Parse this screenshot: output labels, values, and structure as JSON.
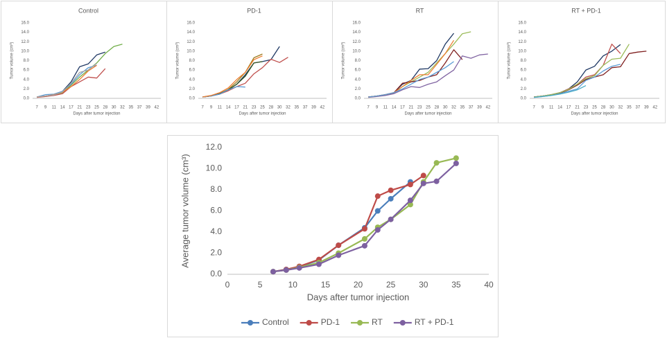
{
  "chart_data": [
    {
      "type": "line",
      "title": "Control",
      "xlabel": "Days after tumor injection",
      "ylabel": "Tumor volume (cm³)",
      "categories": [
        "7",
        "9",
        "11",
        "14",
        "17",
        "21",
        "23",
        "25",
        "28",
        "30",
        "32",
        "35",
        "37",
        "39",
        "42"
      ],
      "ylim": [
        0,
        16
      ],
      "yticks": [
        {
          "value": 0,
          "label": "0.0"
        },
        {
          "value": 2,
          "label": "2.0"
        },
        {
          "value": 4,
          "label": "4.0"
        },
        {
          "value": 6,
          "label": "6.0"
        },
        {
          "value": 8,
          "label": "8.0"
        },
        {
          "value": 10,
          "label": "10.0"
        },
        {
          "value": 12,
          "label": "12.0"
        },
        {
          "value": 14,
          "label": "14.0"
        },
        {
          "value": 16,
          "label": "16.0"
        }
      ],
      "series": [
        {
          "color": "#1f3864",
          "values": [
            0.3,
            0.5,
            0.8,
            1.5,
            3.5,
            6.7,
            7.3,
            9.2,
            9.8,
            null,
            null,
            null,
            null,
            null,
            null
          ]
        },
        {
          "color": "#70ad47",
          "values": [
            0.3,
            0.4,
            0.7,
            1.2,
            2.8,
            4.5,
            6.0,
            7.5,
            9.5,
            11.0,
            11.5,
            null,
            null,
            null,
            null
          ]
        },
        {
          "color": "#c0504d",
          "values": [
            0.2,
            0.4,
            0.6,
            1.0,
            2.5,
            3.5,
            4.5,
            4.3,
            6.3,
            null,
            null,
            null,
            null,
            null,
            null
          ]
        },
        {
          "color": "#5b9bd5",
          "values": [
            0.3,
            0.8,
            0.9,
            1.5,
            3.0,
            5.0,
            6.5,
            7.0,
            null,
            null,
            null,
            null,
            null,
            null,
            null
          ]
        },
        {
          "color": "#ed7d31",
          "values": [
            0.3,
            0.5,
            0.8,
            1.3,
            2.5,
            4.0,
            5.8,
            7.0,
            null,
            null,
            null,
            null,
            null,
            null,
            null
          ]
        },
        {
          "color": "#a5a5a5",
          "values": [
            0.3,
            0.5,
            0.7,
            1.4,
            3.2,
            5.5,
            6.0,
            7.4,
            null,
            null,
            null,
            null,
            null,
            null,
            null
          ]
        }
      ]
    },
    {
      "type": "line",
      "title": "PD-1",
      "xlabel": "Days after tumor injection",
      "ylabel": "Tumor volume (cm³)",
      "categories": [
        "7",
        "9",
        "11",
        "14",
        "17",
        "21",
        "23",
        "25",
        "28",
        "30",
        "32",
        "35",
        "37",
        "39",
        "42"
      ],
      "ylim": [
        0,
        16
      ],
      "yticks": [
        {
          "value": 0,
          "label": "0.0"
        },
        {
          "value": 2,
          "label": "2.0"
        },
        {
          "value": 4,
          "label": "4.0"
        },
        {
          "value": 6,
          "label": "6.0"
        },
        {
          "value": 8,
          "label": "8.0"
        },
        {
          "value": 10,
          "label": "10.0"
        },
        {
          "value": 12,
          "label": "12.0"
        },
        {
          "value": 14,
          "label": "14.0"
        },
        {
          "value": 16,
          "label": "16.0"
        }
      ],
      "series": [
        {
          "color": "#1f3864",
          "values": [
            0.3,
            0.5,
            0.9,
            1.8,
            3.0,
            5.0,
            7.5,
            7.8,
            8.2,
            11.0,
            null,
            null,
            null,
            null,
            null
          ]
        },
        {
          "color": "#c0504d",
          "values": [
            0.3,
            0.5,
            0.9,
            1.6,
            2.5,
            3.2,
            5.2,
            6.5,
            8.3,
            7.6,
            8.7,
            null,
            null,
            null,
            null
          ]
        },
        {
          "color": "#9c7b1c",
          "values": [
            0.3,
            0.6,
            1.0,
            1.9,
            3.5,
            5.5,
            8.6,
            9.4,
            null,
            null,
            null,
            null,
            null,
            null,
            null
          ]
        },
        {
          "color": "#375623",
          "values": [
            0.3,
            0.5,
            1.0,
            1.8,
            3.0,
            4.7,
            7.5,
            7.8,
            null,
            null,
            null,
            null,
            null,
            null,
            null
          ]
        },
        {
          "color": "#5b9bd5",
          "values": [
            0.3,
            0.5,
            0.9,
            1.8,
            2.5,
            2.4,
            null,
            null,
            null,
            null,
            null,
            null,
            null,
            null,
            null
          ]
        },
        {
          "color": "#ed7d31",
          "values": [
            0.3,
            0.6,
            1.2,
            2.2,
            4.0,
            5.5,
            8.2,
            9.0,
            null,
            null,
            null,
            null,
            null,
            null,
            null
          ]
        }
      ]
    },
    {
      "type": "line",
      "title": "RT",
      "xlabel": "Days after tumor injection",
      "ylabel": "Tumor volume (cm³)",
      "categories": [
        "7",
        "9",
        "11",
        "14",
        "17",
        "21",
        "23",
        "25",
        "28",
        "30",
        "32",
        "35",
        "37",
        "39",
        "42"
      ],
      "ylim": [
        0,
        16
      ],
      "yticks": [
        {
          "value": 0,
          "label": "0.0"
        },
        {
          "value": 2,
          "label": "2.0"
        },
        {
          "value": 4,
          "label": "4.0"
        },
        {
          "value": 6,
          "label": "6.0"
        },
        {
          "value": 8,
          "label": "8.0"
        },
        {
          "value": 10,
          "label": "10.0"
        },
        {
          "value": 12,
          "label": "12.0"
        },
        {
          "value": 14,
          "label": "14.0"
        },
        {
          "value": 16,
          "label": "16.0"
        }
      ],
      "series": [
        {
          "color": "#1f3864",
          "values": [
            0.3,
            0.5,
            0.8,
            1.2,
            3.0,
            3.8,
            6.2,
            6.3,
            8.0,
            11.5,
            13.8,
            null,
            null,
            null,
            null
          ]
        },
        {
          "color": "#9bbb59",
          "values": [
            0.3,
            0.5,
            0.7,
            1.1,
            2.5,
            3.5,
            4.5,
            5.5,
            7.5,
            9.5,
            11.5,
            13.7,
            14.1,
            null,
            null
          ]
        },
        {
          "color": "#7f1f1f",
          "values": [
            0.3,
            0.5,
            0.8,
            1.2,
            3.2,
            3.5,
            3.8,
            4.5,
            5.0,
            7.5,
            10.3,
            8.2,
            null,
            null,
            null
          ]
        },
        {
          "color": "#8064a2",
          "values": [
            0.2,
            0.4,
            0.6,
            1.0,
            1.8,
            2.5,
            2.3,
            3.0,
            3.5,
            4.8,
            6.0,
            9.0,
            8.5,
            9.2,
            9.4
          ]
        },
        {
          "color": "#ed7d31",
          "values": [
            0.3,
            0.5,
            0.8,
            1.2,
            2.5,
            3.8,
            5.0,
            5.0,
            7.2,
            9.5,
            12.3,
            null,
            null,
            null,
            null
          ]
        },
        {
          "color": "#5b9bd5",
          "values": [
            0.3,
            0.5,
            0.8,
            1.2,
            2.0,
            3.0,
            4.0,
            4.5,
            5.5,
            6.5,
            7.8,
            null,
            null,
            null,
            null
          ]
        }
      ]
    },
    {
      "type": "line",
      "title": "RT + PD-1",
      "xlabel": "Days after tumor injection",
      "ylabel": "Tumor volume (cm³)",
      "categories": [
        "7",
        "9",
        "11",
        "14",
        "17",
        "21",
        "23",
        "25",
        "28",
        "30",
        "32",
        "35",
        "37",
        "39",
        "42"
      ],
      "ylim": [
        0,
        16
      ],
      "yticks": [
        {
          "value": 0,
          "label": "0.0"
        },
        {
          "value": 2,
          "label": "2.0"
        },
        {
          "value": 4,
          "label": "4.0"
        },
        {
          "value": 6,
          "label": "6.0"
        },
        {
          "value": 8,
          "label": "8.0"
        },
        {
          "value": 10,
          "label": "10.0"
        },
        {
          "value": 12,
          "label": "12.0"
        },
        {
          "value": 14,
          "label": "14.0"
        },
        {
          "value": 16,
          "label": "16.0"
        }
      ],
      "series": [
        {
          "color": "#1f3864",
          "values": [
            0.3,
            0.5,
            0.8,
            1.2,
            2.0,
            3.5,
            6.0,
            6.8,
            9.0,
            10.0,
            11.4,
            null,
            null,
            null,
            null
          ]
        },
        {
          "color": "#c0504d",
          "values": [
            0.3,
            0.5,
            0.8,
            1.2,
            2.0,
            3.0,
            4.5,
            5.0,
            7.0,
            11.5,
            9.5,
            null,
            null,
            null,
            null
          ]
        },
        {
          "color": "#7f1f1f",
          "values": [
            0.3,
            0.5,
            0.7,
            1.1,
            1.8,
            2.8,
            4.0,
            4.5,
            5.0,
            6.5,
            6.7,
            9.5,
            9.8,
            10.0,
            null
          ]
        },
        {
          "color": "#9bbb59",
          "values": [
            0.3,
            0.5,
            0.8,
            1.2,
            1.9,
            3.0,
            4.2,
            4.8,
            7.0,
            8.3,
            8.5,
            11.5,
            null,
            null,
            null
          ]
        },
        {
          "color": "#5b9bd5",
          "values": [
            0.2,
            0.4,
            0.6,
            1.0,
            1.5,
            2.0,
            3.8,
            4.5,
            5.8,
            6.8,
            7.2,
            null,
            null,
            null,
            null
          ]
        },
        {
          "color": "#4bacc6",
          "values": [
            0.2,
            0.4,
            0.6,
            0.9,
            1.3,
            1.8,
            2.7,
            null,
            null,
            null,
            null,
            null,
            null,
            null,
            null
          ]
        }
      ]
    },
    {
      "type": "line",
      "xlabel": "Days after tumor injection",
      "ylabel": "Average tumor volume (cm³)",
      "xlim": [
        0,
        40
      ],
      "xticks": [
        0,
        5,
        10,
        15,
        20,
        25,
        30,
        35,
        40
      ],
      "ylim": [
        0,
        12
      ],
      "yticks": [
        {
          "value": 0,
          "label": "0.0"
        },
        {
          "value": 2,
          "label": "2.0"
        },
        {
          "value": 4,
          "label": "4.0"
        },
        {
          "value": 6,
          "label": "6.0"
        },
        {
          "value": 8,
          "label": "8.0"
        },
        {
          "value": 10,
          "label": "10.0"
        },
        {
          "value": 12,
          "label": "12.0"
        }
      ],
      "markers": true,
      "legend": "bottom",
      "series": [
        {
          "name": "Control",
          "color": "#4a7ebb",
          "x": [
            7,
            9,
            11,
            14,
            17,
            21,
            23,
            25,
            28
          ],
          "values": [
            0.25,
            0.45,
            0.7,
            1.35,
            2.75,
            4.4,
            6.0,
            7.15,
            8.75
          ]
        },
        {
          "name": "PD-1",
          "color": "#be4b48",
          "x": [
            7,
            9,
            11,
            14,
            17,
            21,
            23,
            25,
            28,
            30
          ],
          "values": [
            0.25,
            0.45,
            0.75,
            1.4,
            2.75,
            4.3,
            7.4,
            7.95,
            8.5,
            9.35
          ]
        },
        {
          "name": "RT",
          "color": "#98b954",
          "x": [
            7,
            9,
            11,
            14,
            17,
            21,
            23,
            25,
            28,
            30,
            32,
            35
          ],
          "values": [
            0.25,
            0.4,
            0.65,
            1.1,
            2.0,
            3.35,
            4.45,
            5.2,
            6.6,
            8.75,
            10.55,
            11.0
          ]
        },
        {
          "name": "RT + PD-1",
          "color": "#7d60a0",
          "x": [
            7,
            9,
            11,
            14,
            17,
            21,
            23,
            25,
            28,
            30,
            32,
            35
          ],
          "values": [
            0.25,
            0.4,
            0.6,
            0.95,
            1.8,
            2.7,
            4.2,
            5.2,
            7.0,
            8.6,
            8.8,
            10.5
          ]
        }
      ]
    }
  ]
}
